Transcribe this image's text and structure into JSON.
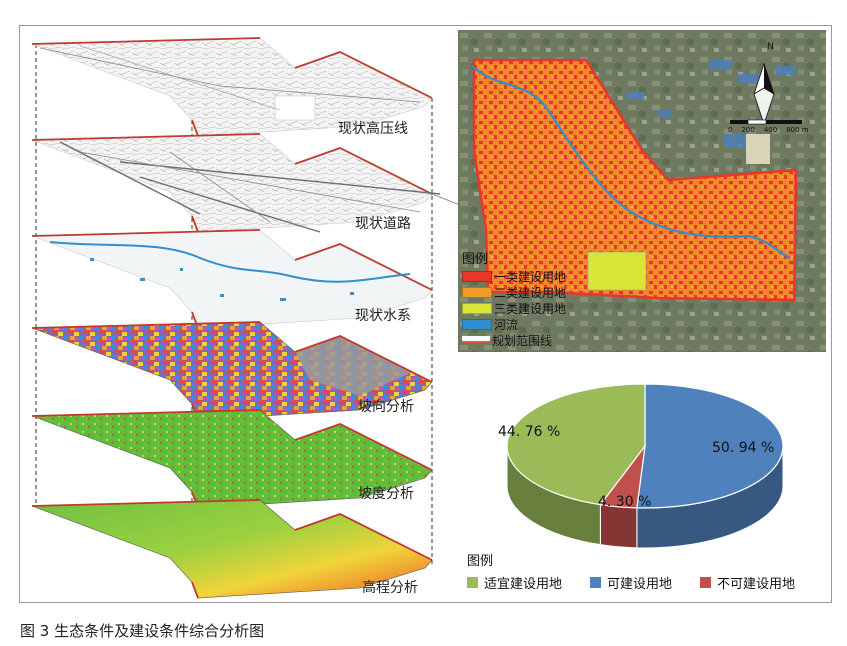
{
  "layers": [
    {
      "label": "现状高压线"
    },
    {
      "label": "现状道路"
    },
    {
      "label": "现状水系"
    },
    {
      "label": "坡向分析"
    },
    {
      "label": "坡度分析"
    },
    {
      "label": "高程分析"
    }
  ],
  "map": {
    "legend_title": "图例",
    "legend_items": [
      {
        "label": "一类建设用地",
        "color": "#e8362b"
      },
      {
        "label": "二类建设用地",
        "color": "#f39b2a"
      },
      {
        "label": "三类建设用地",
        "color": "#d9e637"
      },
      {
        "label": "河流",
        "color": "#2f8fd0"
      },
      {
        "label": "规划范围线",
        "color": "#e05a4a"
      }
    ],
    "scale_ticks": [
      "0",
      "200",
      "400",
      "800 m"
    ],
    "north_letter": "N"
  },
  "chart_data": {
    "type": "pie",
    "legend_title": "图例",
    "slices": [
      {
        "label": "适宜建设用地",
        "value": 44.76,
        "display": "44. 76 %",
        "color": "#9bbb59"
      },
      {
        "label": "可建设用地",
        "value": 50.94,
        "display": "50. 94 %",
        "color": "#4f81bd"
      },
      {
        "label": "不可建设用地",
        "value": 4.3,
        "display": "4. 30 %",
        "color": "#c0504d"
      }
    ]
  },
  "caption": "图 3  生态条件及建设条件综合分析图"
}
